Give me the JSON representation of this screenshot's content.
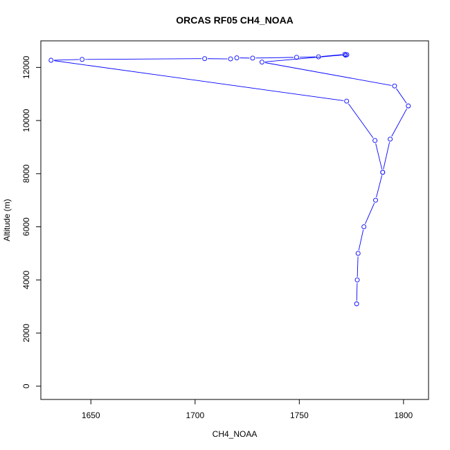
{
  "chart_data": {
    "type": "line",
    "title": "ORCAS RF05 CH4_NOAA",
    "xlabel": "CH4_NOAA",
    "ylabel": "Altitude (m)",
    "xlim": [
      1626,
      1812
    ],
    "ylim": [
      -500,
      13000
    ],
    "x_ticks": [
      1650,
      1700,
      1750,
      1800
    ],
    "y_ticks": [
      0,
      2000,
      4000,
      6000,
      8000,
      10000,
      12000
    ],
    "series": [
      {
        "color": "#0000ff",
        "marker": "open-circle",
        "x": [
          1777.5,
          1777.8,
          1778.2,
          1781.0,
          1786.6,
          1790.0,
          1793.6,
          1802.3,
          1795.7,
          1732.1,
          1772.8,
          1772.2,
          1771.8,
          1759.2,
          1748.7,
          1727.6,
          1720.0,
          1717.0,
          1704.6,
          1645.8,
          1630.9,
          1772.7,
          1786.3,
          1790.0
        ],
        "y": [
          3100,
          4000,
          5000,
          6000,
          7000,
          8050,
          9300,
          10550,
          11300,
          12200,
          12480,
          12460,
          12490,
          12400,
          12380,
          12350,
          12360,
          12320,
          12330,
          12300,
          12270,
          10730,
          9250,
          8050
        ]
      }
    ],
    "grid": false,
    "legend": "none"
  }
}
